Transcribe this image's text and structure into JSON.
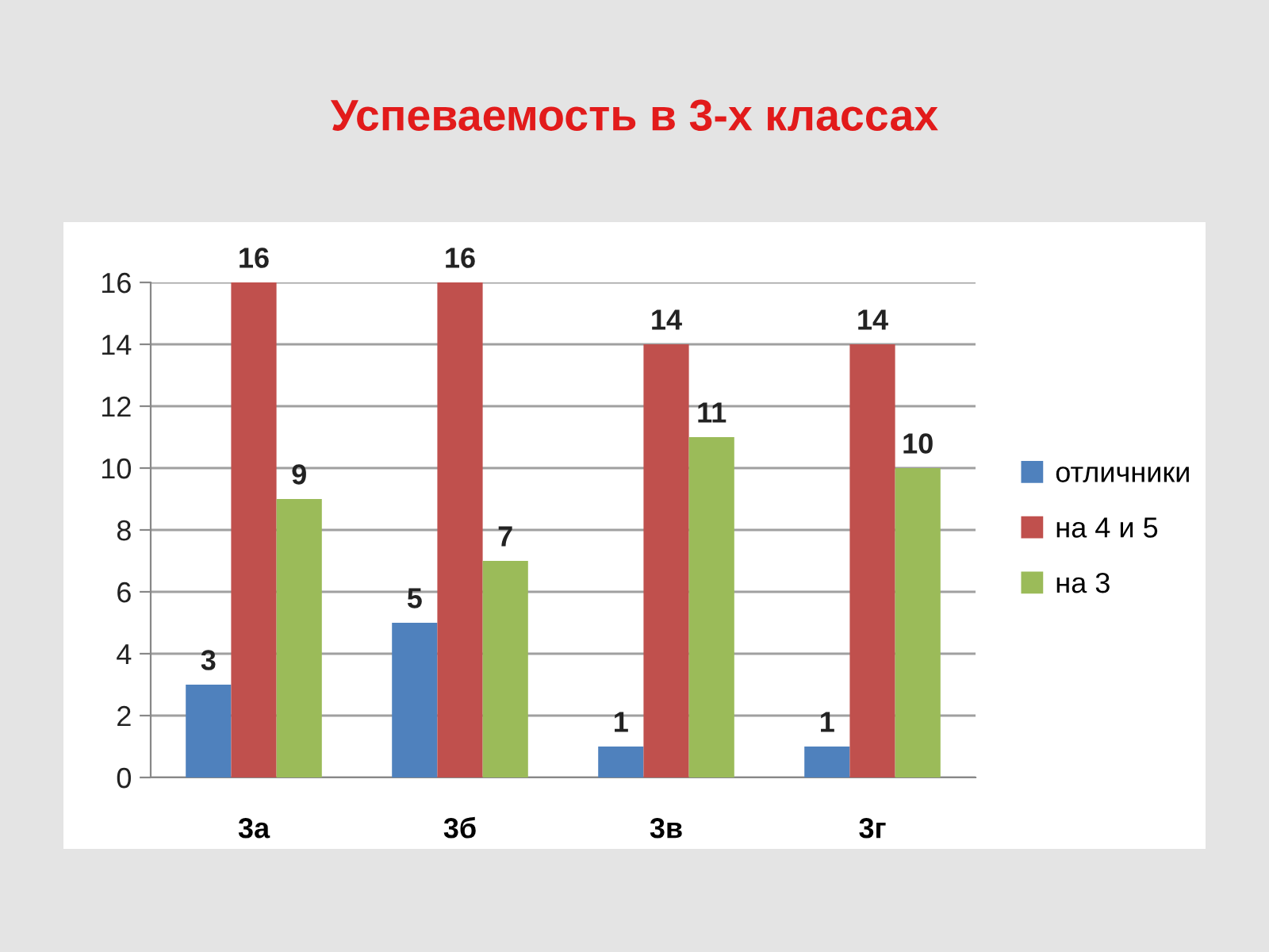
{
  "chart_data": {
    "type": "bar",
    "title": "Успеваемость в 3-х классах",
    "categories": [
      "3а",
      "3б",
      "3в",
      "3г"
    ],
    "series": [
      {
        "name": "отличники",
        "color": "#4f81bd",
        "values": [
          3,
          5,
          1,
          1
        ]
      },
      {
        "name": "на 4 и 5",
        "color": "#c0504d",
        "values": [
          16,
          16,
          14,
          14
        ]
      },
      {
        "name": "на 3",
        "color": "#9bbb59",
        "values": [
          9,
          7,
          11,
          10
        ]
      }
    ],
    "ylim": [
      0,
      16
    ],
    "yticks": [
      0,
      2,
      4,
      6,
      8,
      10,
      12,
      14,
      16
    ],
    "grid": "y",
    "legend": "right",
    "data_labels": true
  }
}
